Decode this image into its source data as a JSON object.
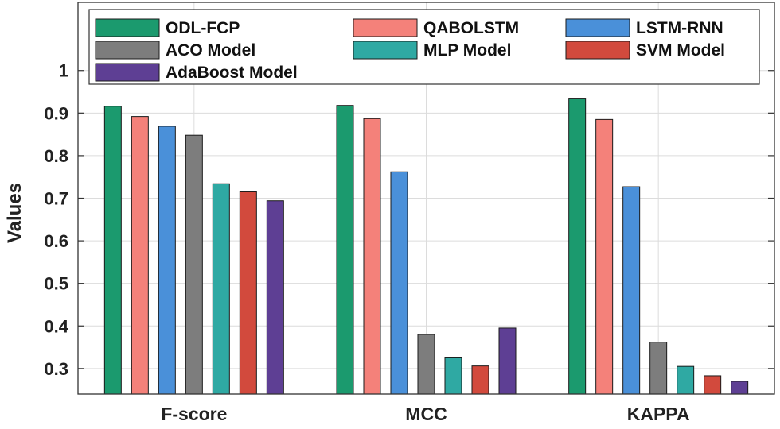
{
  "chart_data": {
    "type": "bar",
    "categories": [
      "F-score",
      "MCC",
      "KAPPA"
    ],
    "series": [
      {
        "name": "ODL-FCP",
        "color": "#1b9a6e",
        "values": [
          0.916,
          0.918,
          0.935
        ]
      },
      {
        "name": "QABOLSTM",
        "color": "#f4817a",
        "values": [
          0.892,
          0.887,
          0.885
        ]
      },
      {
        "name": "LSTM-RNN",
        "color": "#4a90d9",
        "values": [
          0.869,
          0.762,
          0.727
        ]
      },
      {
        "name": "ACO Model",
        "color": "#7d7d7d",
        "values": [
          0.848,
          0.38,
          0.362
        ]
      },
      {
        "name": "MLP Model",
        "color": "#2fa9a3",
        "values": [
          0.734,
          0.325,
          0.305
        ]
      },
      {
        "name": "SVM Model",
        "color": "#d24a3d",
        "values": [
          0.715,
          0.306,
          0.283
        ]
      },
      {
        "name": "AdaBoost Model",
        "color": "#5e3f94",
        "values": [
          0.694,
          0.395,
          0.27
        ]
      }
    ],
    "xlabel": "",
    "ylabel": "Values",
    "ylim": [
      0.24,
      1.16
    ],
    "yticks": [
      "0.3",
      "0.4",
      "0.5",
      "0.6",
      "0.7",
      "0.8",
      "0.9",
      "1"
    ],
    "grid": true,
    "legend_position": "top"
  }
}
